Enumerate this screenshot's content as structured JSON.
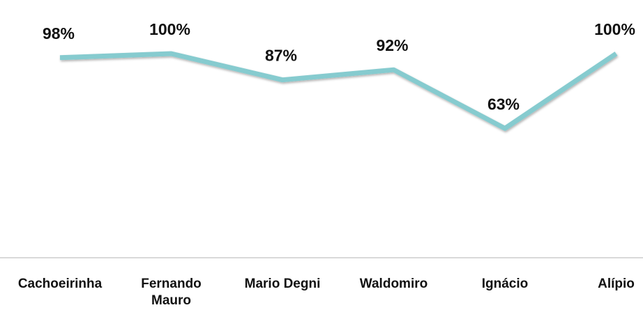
{
  "chart_data": {
    "type": "line",
    "categories": [
      "Cachoeirinha",
      "Fernando Mauro",
      "Mario Degni",
      "Waldomiro",
      "Ignácio",
      "Alípio"
    ],
    "series": [
      {
        "color": "#86cbcf",
        "values": [
          98,
          100,
          87,
          92,
          63,
          100
        ],
        "value_labels": [
          "98%",
          "100%",
          "87%",
          "92%",
          "63%",
          "100%"
        ]
      }
    ],
    "ylim": [
      0,
      100
    ]
  }
}
